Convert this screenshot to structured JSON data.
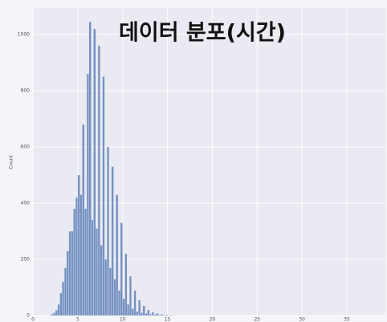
{
  "chart_data": {
    "type": "histogram",
    "title": "데이터 분포(시간)",
    "ylabel": "Count",
    "bins": [
      2,
      2.25,
      2.5,
      2.75,
      3,
      3.25,
      3.5,
      3.75,
      4,
      4.25,
      4.5,
      4.75,
      5,
      5.25,
      5.5,
      5.75,
      6,
      6.25,
      6.5,
      6.75,
      7,
      7.25,
      7.5,
      7.75,
      8,
      8.25,
      8.5,
      8.75,
      9,
      9.25,
      9.5,
      9.75,
      10,
      10.25,
      10.5,
      10.75,
      11,
      11.25,
      11.5,
      11.75,
      12,
      12.25,
      12.5,
      12.75,
      13,
      13.25,
      13.5,
      13.75,
      14,
      14.25,
      14.5,
      14.75,
      15,
      15.25,
      15.5,
      15.75,
      16
    ],
    "values": [
      5,
      10,
      20,
      40,
      80,
      120,
      170,
      230,
      300,
      300,
      380,
      420,
      500,
      430,
      680,
      380,
      860,
      1045,
      340,
      1020,
      310,
      960,
      250,
      850,
      200,
      600,
      170,
      530,
      130,
      430,
      90,
      330,
      60,
      220,
      40,
      140,
      25,
      90,
      15,
      55,
      10,
      35,
      8,
      20,
      5,
      12,
      4,
      8,
      3,
      5,
      2,
      3,
      1,
      2,
      1,
      1
    ],
    "color": "#4c72b0",
    "xlim": [
      0,
      39.3
    ],
    "xticks": [
      0,
      5,
      10,
      15,
      20,
      25,
      30,
      35
    ],
    "ylim": [
      0,
      1094
    ],
    "yticks": [
      0,
      200,
      400,
      600,
      800,
      1000
    ],
    "grid": true
  }
}
